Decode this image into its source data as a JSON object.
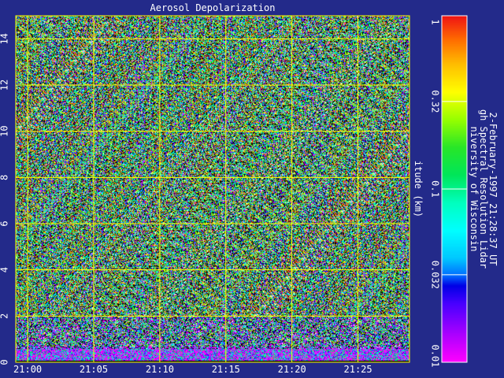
{
  "chart_data": {
    "type": "heatmap",
    "title": "Aerosol Depolarization",
    "xlabel": "",
    "ylabel": "itude (km)",
    "x_ticks": [
      "21:00",
      "21:05",
      "21:10",
      "21:15",
      "21:20",
      "21:25"
    ],
    "x_tick_minutes": [
      0,
      5,
      10,
      15,
      20,
      25
    ],
    "xlim_minutes": [
      -0.9,
      28.9
    ],
    "y_ticks": [
      "0",
      "2",
      "4",
      "6",
      "8",
      "10",
      "12",
      "14"
    ],
    "y_tick_values": [
      0,
      2,
      4,
      6,
      8,
      10,
      12,
      14
    ],
    "ylim": [
      0,
      15
    ],
    "grid": true,
    "grid_color": "#ffff00",
    "colorbar": {
      "scale": "log",
      "range": [
        0.01,
        1
      ],
      "tick_labels": [
        "1",
        "0.32",
        "0.1",
        "0.032",
        "0.01"
      ],
      "tick_values": [
        1,
        0.32,
        0.1,
        0.032,
        0.01
      ]
    },
    "annotations": [
      "niversity of Wisconsin",
      "gh Spectral Resolution Lidar",
      "2-February-1997 21:28:37 UT"
    ]
  },
  "colors": {
    "background": "#232a8a",
    "grid": "#ffff00",
    "text": "#ffffff"
  }
}
